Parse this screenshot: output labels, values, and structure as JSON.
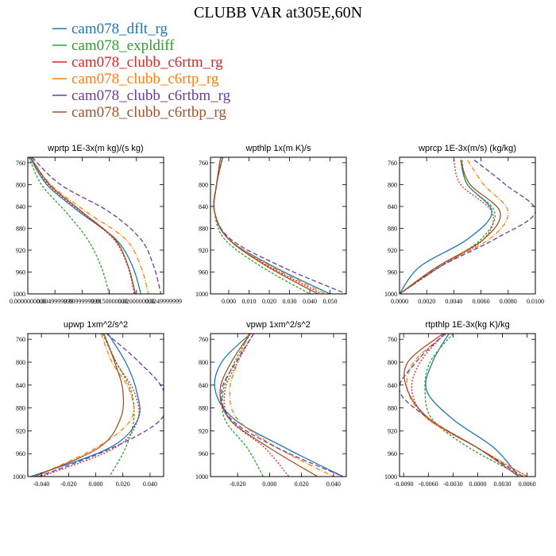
{
  "title": "CLUBB VAR at305E,60N",
  "legend": [
    {
      "label": "cam078_dflt_rg",
      "color": "#1f77b4",
      "dash": ""
    },
    {
      "label": "cam078_expldiff",
      "color": "#2ca02c",
      "dash": "3,2"
    },
    {
      "label": "cam078_clubb_c6rtm_rg",
      "color": "#d62728",
      "dash": "2,2"
    },
    {
      "label": "cam078_clubb_c6rtp_rg",
      "color": "#ff7f0e",
      "dash": "6,2,1,2"
    },
    {
      "label": "cam078_clubb_c6rtbm_rg",
      "color": "#6a3d9a",
      "dash": "6,3"
    },
    {
      "label": "cam078_clubb_c6rtbp_rg",
      "color": "#a0522d",
      "dash": ""
    }
  ],
  "chart_data": [
    {
      "type": "line",
      "title": "wprtp  1E-3x(m kg)/(s kg)",
      "xlim": [
        0.0,
        0.025
      ],
      "xticks": [
        0.0,
        0.005,
        0.01,
        0.015,
        0.02,
        0.025
      ],
      "xtick_labels": [
        "0.0000000000",
        "0.0049999999",
        "0.0099999999",
        "0.0150000000",
        "0.0200000000",
        "0.0249999999"
      ],
      "ylim": [
        1000,
        750
      ],
      "yticks": [
        760,
        800,
        840,
        880,
        920,
        960,
        1000
      ],
      "y": [
        750,
        800,
        850,
        900,
        950,
        1000
      ],
      "series": [
        {
          "values": [
            0.0004,
            0.0035,
            0.0095,
            0.0162,
            0.0193,
            0.0208
          ]
        },
        {
          "values": [
            0.0002,
            0.0025,
            0.007,
            0.011,
            0.0135,
            0.015
          ]
        },
        {
          "values": [
            0.0005,
            0.0038,
            0.0098,
            0.0158,
            0.0184,
            0.0196
          ]
        },
        {
          "values": [
            0.0006,
            0.0042,
            0.0108,
            0.018,
            0.0208,
            0.0222
          ]
        },
        {
          "values": [
            0.0008,
            0.006,
            0.015,
            0.0208,
            0.0232,
            0.0245
          ]
        },
        {
          "values": [
            0.0005,
            0.004,
            0.01,
            0.016,
            0.0185,
            0.0198
          ]
        }
      ]
    },
    {
      "type": "line",
      "title": "wpthlp  1x(m K)/s",
      "xlim": [
        -0.009,
        0.058
      ],
      "xticks": [
        0.0,
        0.01,
        0.02,
        0.03,
        0.04,
        0.05
      ],
      "xtick_labels": [
        "0.000",
        "0.010",
        "0.020",
        "0.030",
        "0.040",
        "0.050"
      ],
      "ylim": [
        1000,
        750
      ],
      "yticks": [
        760,
        800,
        840,
        880,
        920,
        960,
        1000
      ],
      "y": [
        750,
        800,
        850,
        900,
        950,
        1000
      ],
      "series": [
        {
          "values": [
            -0.003,
            -0.006,
            -0.007,
            0.0,
            0.022,
            0.05
          ]
        },
        {
          "values": [
            -0.003,
            -0.006,
            -0.007,
            -0.002,
            0.016,
            0.04
          ]
        },
        {
          "values": [
            -0.004,
            -0.006,
            -0.007,
            0.0,
            0.02,
            0.046
          ]
        },
        {
          "values": [
            -0.003,
            -0.006,
            -0.007,
            0.0,
            0.021,
            0.048
          ]
        },
        {
          "values": [
            -0.003,
            -0.006,
            -0.007,
            0.001,
            0.026,
            0.058
          ]
        },
        {
          "values": [
            -0.004,
            -0.006,
            -0.007,
            0.0,
            0.019,
            0.044
          ]
        }
      ]
    },
    {
      "type": "line",
      "title": "wprcp  1E-3x(m/s) (kg/kg)",
      "xlim": [
        0.0,
        0.01
      ],
      "xticks": [
        0.0,
        0.002,
        0.004,
        0.006,
        0.008,
        0.01
      ],
      "xtick_labels": [
        "0.0000",
        "0.0020",
        "0.0040",
        "0.0060",
        "0.0080",
        "0.0100"
      ],
      "ylim": [
        1000,
        750
      ],
      "yticks": [
        760,
        800,
        840,
        880,
        920,
        960,
        1000
      ],
      "y": [
        755,
        800,
        850,
        900,
        950,
        1000
      ],
      "series": [
        {
          "values": [
            0.0045,
            0.005,
            0.0068,
            0.005,
            0.0015,
            0.0
          ]
        },
        {
          "values": [
            0.0046,
            0.005,
            0.007,
            0.006,
            0.003,
            0.0
          ]
        },
        {
          "values": [
            0.004,
            0.0045,
            0.0068,
            0.0062,
            0.003,
            0.0
          ]
        },
        {
          "values": [
            0.005,
            0.0062,
            0.008,
            0.0066,
            0.0028,
            0.0
          ]
        },
        {
          "values": [
            0.0055,
            0.0078,
            0.01,
            0.007,
            0.003,
            0.0
          ]
        },
        {
          "values": [
            0.0045,
            0.0052,
            0.0074,
            0.0062,
            0.0028,
            0.0
          ]
        }
      ]
    },
    {
      "type": "line",
      "title": "upwp  1xm^2/s^2",
      "xlim": [
        -0.05,
        0.05
      ],
      "xticks": [
        -0.04,
        -0.02,
        0.0,
        0.02,
        0.04
      ],
      "xtick_labels": [
        "-0.040",
        "-0.020",
        "0.000",
        "0.020",
        "0.040"
      ],
      "ylim": [
        1000,
        750
      ],
      "yticks": [
        760,
        800,
        840,
        880,
        920,
        960,
        1000
      ],
      "y": [
        750,
        800,
        850,
        900,
        950,
        1000
      ],
      "series": [
        {
          "values": [
            0.009,
            0.022,
            0.03,
            0.031,
            0.01,
            -0.048
          ]
        },
        {
          "values": [
            0.005,
            0.015,
            0.026,
            0.028,
            0.022,
            0.01
          ]
        },
        {
          "values": [
            0.006,
            0.015,
            0.028,
            0.031,
            0.014,
            -0.04
          ]
        },
        {
          "values": [
            0.004,
            0.012,
            0.025,
            0.026,
            0.0,
            -0.045
          ]
        },
        {
          "values": [
            0.008,
            0.032,
            0.05,
            0.048,
            0.012,
            -0.042
          ]
        },
        {
          "values": [
            0.006,
            0.014,
            0.02,
            0.018,
            0.002,
            -0.045
          ]
        }
      ]
    },
    {
      "type": "line",
      "title": "vpwp  1xm^2/s^2",
      "xlim": [
        -0.037,
        0.048
      ],
      "xticks": [
        -0.02,
        0.0,
        0.02,
        0.04
      ],
      "xtick_labels": [
        "-0.020",
        "0.000",
        "0.020",
        "0.040"
      ],
      "ylim": [
        1000,
        750
      ],
      "yticks": [
        760,
        800,
        840,
        880,
        920,
        960,
        1000
      ],
      "y": [
        750,
        800,
        850,
        900,
        950,
        1000
      ],
      "series": [
        {
          "values": [
            -0.012,
            -0.03,
            -0.034,
            -0.022,
            0.01,
            0.046
          ]
        },
        {
          "values": [
            -0.012,
            -0.022,
            -0.029,
            -0.028,
            -0.014,
            -0.004
          ]
        },
        {
          "values": [
            -0.01,
            -0.02,
            -0.028,
            -0.025,
            -0.003,
            0.012
          ]
        },
        {
          "values": [
            -0.013,
            -0.02,
            -0.025,
            -0.02,
            0.005,
            0.04
          ]
        },
        {
          "values": [
            -0.01,
            -0.021,
            -0.03,
            -0.024,
            0.005,
            0.046
          ]
        },
        {
          "values": [
            -0.012,
            -0.024,
            -0.031,
            -0.025,
            0.0,
            0.03
          ]
        }
      ]
    },
    {
      "type": "line",
      "title": "rtpthlp  1E-3x(kg K)/kg",
      "xlim": [
        -0.0095,
        0.007
      ],
      "xticks": [
        -0.009,
        -0.006,
        -0.003,
        0.0,
        0.003,
        0.006
      ],
      "xtick_labels": [
        "-0.0090",
        "-0.0060",
        "-0.0030",
        "0.0000",
        "0.0030",
        "0.0060"
      ],
      "ylim": [
        1000,
        750
      ],
      "yticks": [
        760,
        800,
        840,
        880,
        920,
        960,
        1000
      ],
      "y": [
        750,
        800,
        850,
        900,
        950,
        1000
      ],
      "series": [
        {
          "values": [
            -0.0035,
            -0.0055,
            -0.0062,
            -0.003,
            0.002,
            0.005
          ]
        },
        {
          "values": [
            -0.003,
            -0.0058,
            -0.0064,
            -0.0055,
            -0.001,
            0.0055
          ]
        },
        {
          "values": [
            -0.004,
            -0.007,
            -0.008,
            -0.006,
            0.0,
            0.006
          ]
        },
        {
          "values": [
            -0.0038,
            -0.0078,
            -0.0085,
            -0.006,
            0.0,
            0.006
          ]
        },
        {
          "values": [
            -0.004,
            -0.0075,
            -0.0095,
            -0.0058,
            0.0,
            0.0055
          ]
        },
        {
          "values": [
            -0.0042,
            -0.0085,
            -0.0085,
            -0.0058,
            0.0,
            0.005
          ]
        }
      ]
    }
  ]
}
